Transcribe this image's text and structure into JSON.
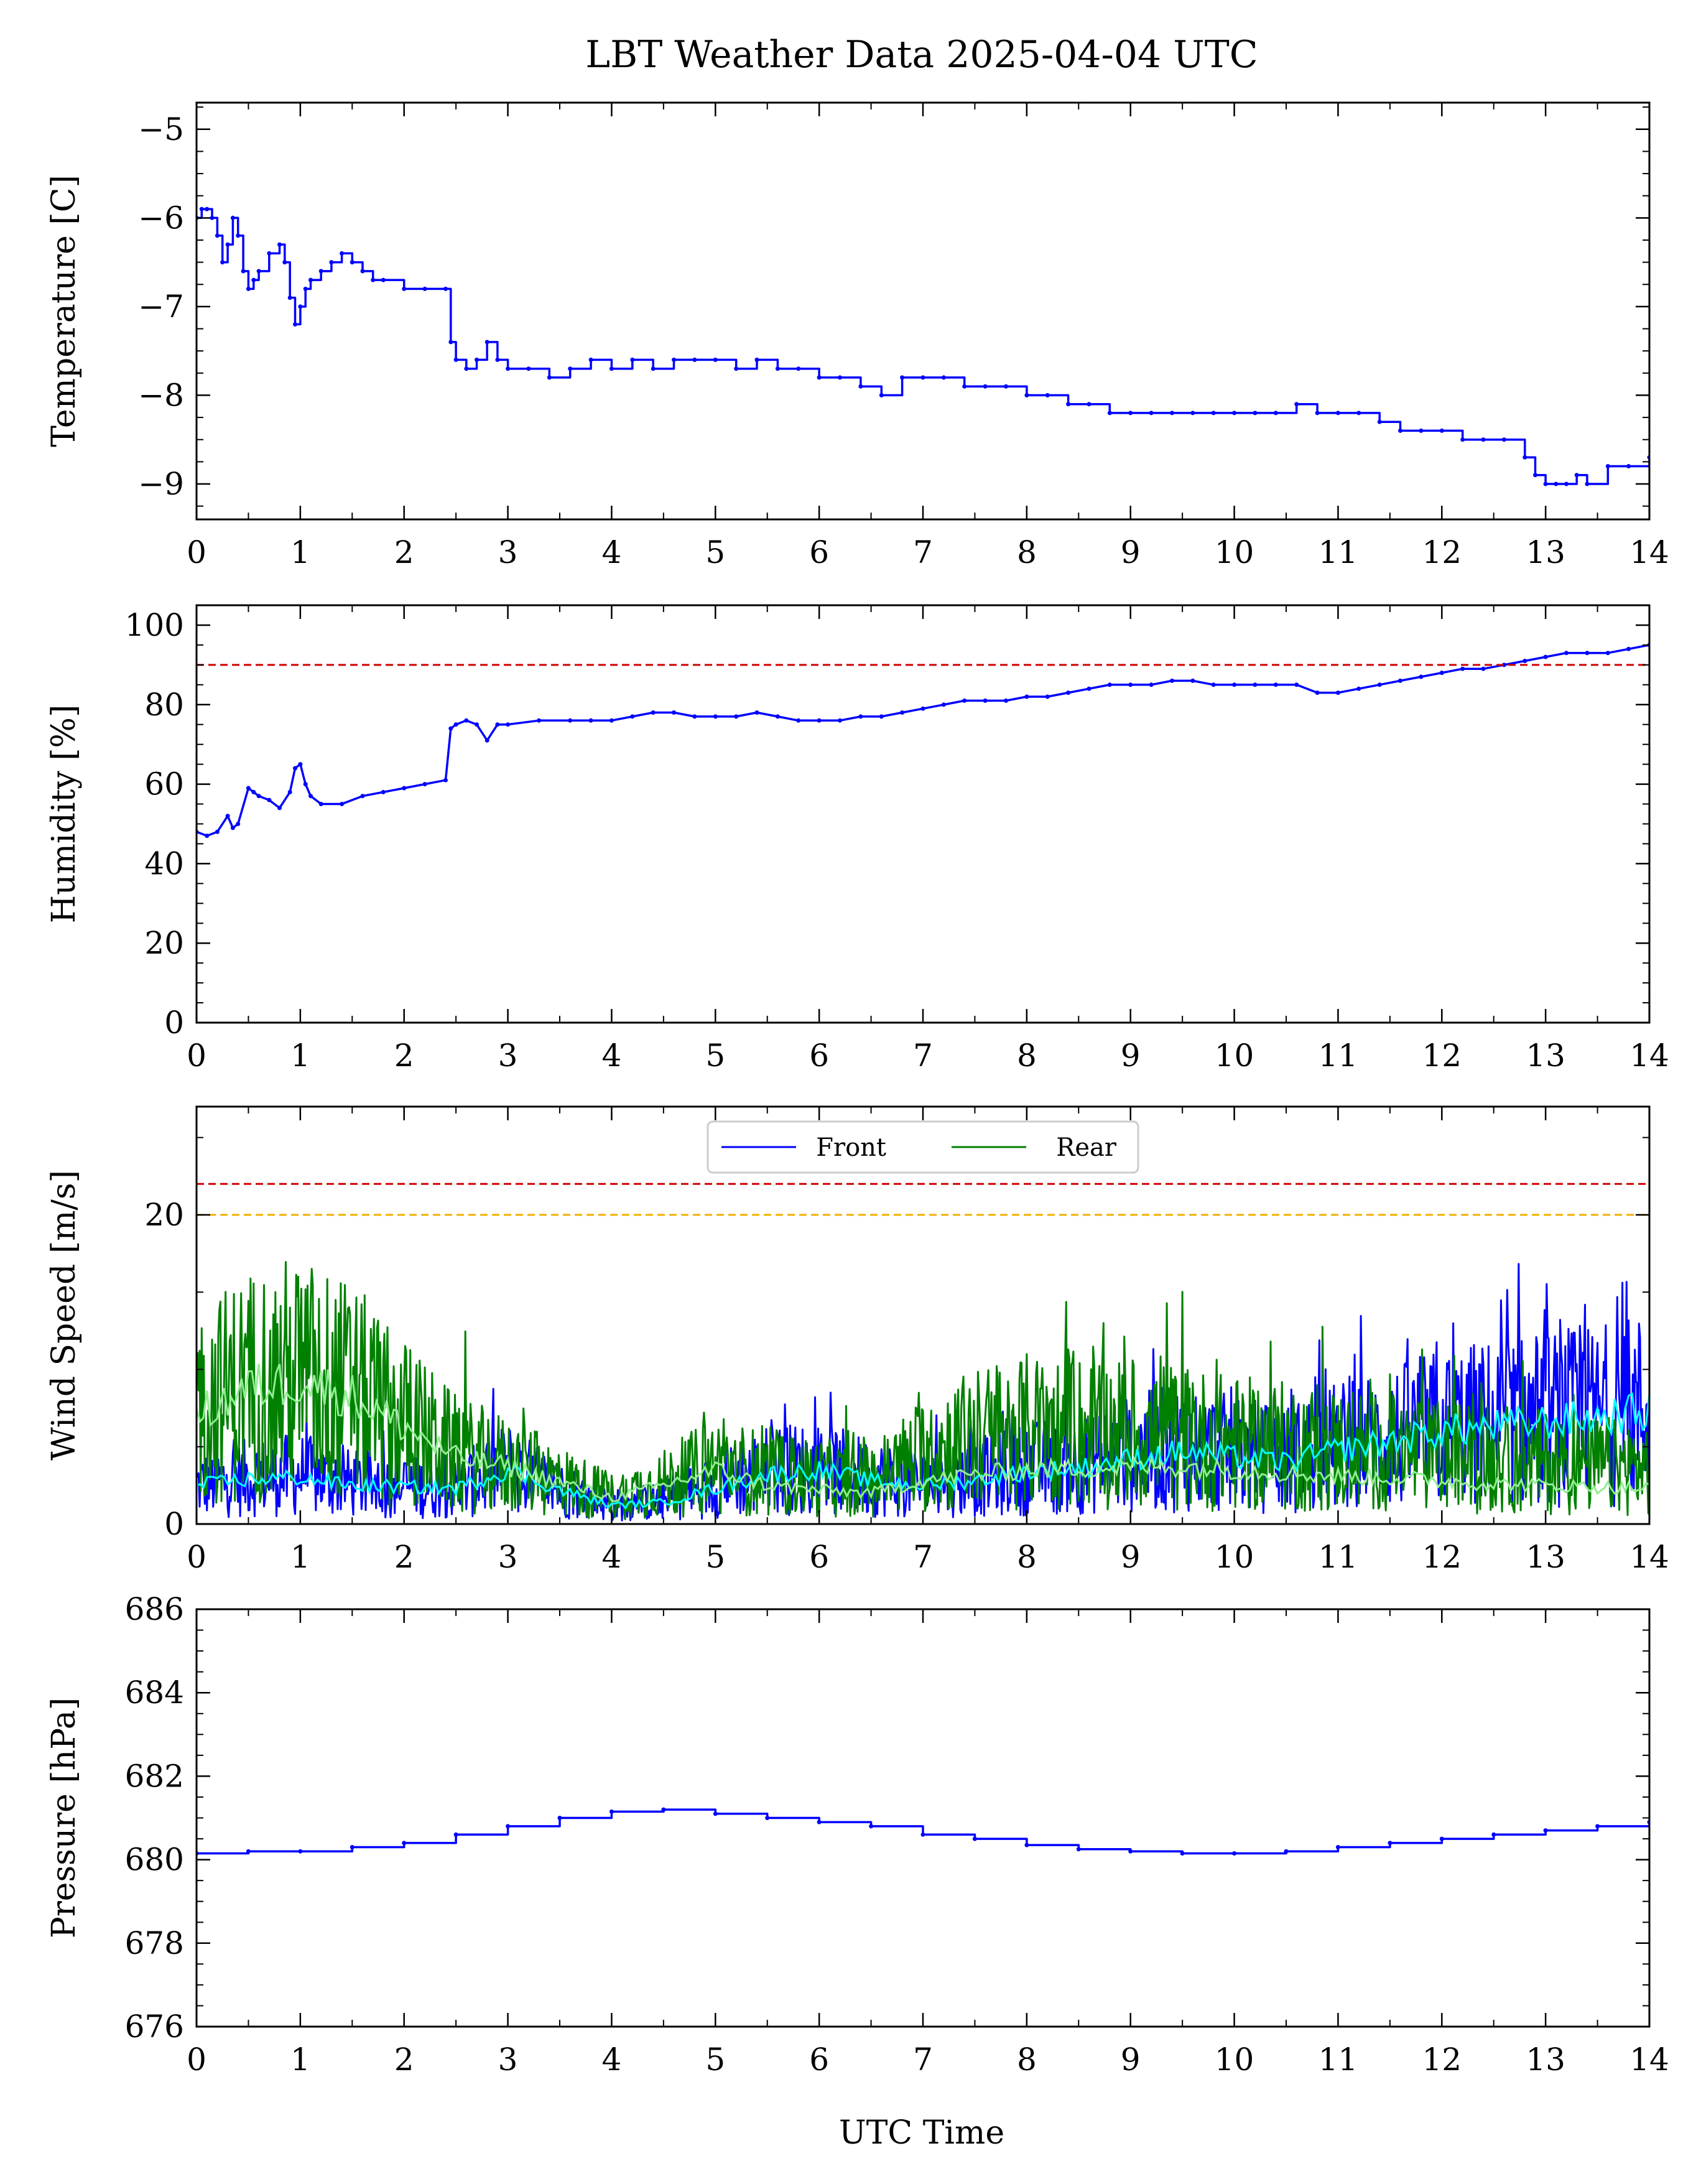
{
  "figure_title": "LBT Weather Data 2025-04-04 UTC",
  "x_axis_label": "UTC Time",
  "x_ticks": [
    0,
    1,
    2,
    3,
    4,
    5,
    6,
    7,
    8,
    9,
    10,
    11,
    12,
    13,
    14
  ],
  "colors": {
    "front": "#0000ff",
    "rear": "#008000",
    "front_smooth": "#00ffff",
    "rear_smooth": "#90ee90",
    "limit_red": "#d00000",
    "limit_orange": "#f0b000"
  },
  "chart_data": [
    {
      "type": "line",
      "ylabel": "Temperature [C]",
      "xlim": [
        0,
        14
      ],
      "ylim": [
        -9.4,
        -4.7
      ],
      "yticks": [
        -9,
        -8,
        -7,
        -6,
        -5
      ],
      "ytick_labels": [
        "−9",
        "−8",
        "−7",
        "−6",
        "−5"
      ],
      "series": [
        {
          "color": "#0000ff",
          "x": [
            0,
            0.05,
            0.1,
            0.15,
            0.2,
            0.25,
            0.3,
            0.35,
            0.4,
            0.45,
            0.5,
            0.55,
            0.6,
            0.7,
            0.8,
            0.85,
            0.9,
            0.95,
            1.0,
            1.05,
            1.1,
            1.2,
            1.3,
            1.4,
            1.5,
            1.6,
            1.7,
            1.8,
            2.0,
            2.2,
            2.4,
            2.45,
            2.5,
            2.6,
            2.7,
            2.8,
            2.9,
            3.0,
            3.2,
            3.4,
            3.6,
            3.8,
            4.0,
            4.2,
            4.4,
            4.6,
            4.8,
            5.0,
            5.2,
            5.4,
            5.6,
            5.8,
            6.0,
            6.2,
            6.4,
            6.6,
            6.8,
            7.0,
            7.2,
            7.4,
            7.6,
            7.8,
            8.0,
            8.2,
            8.4,
            8.6,
            8.8,
            9.0,
            9.2,
            9.4,
            9.6,
            9.8,
            10.0,
            10.2,
            10.4,
            10.6,
            10.8,
            11.0,
            11.2,
            11.4,
            11.6,
            11.8,
            12.0,
            12.2,
            12.4,
            12.6,
            12.8,
            12.9,
            13.0,
            13.1,
            13.2,
            13.3,
            13.4,
            13.6,
            13.8,
            14.0
          ],
          "y": [
            -6.0,
            -5.9,
            -5.9,
            -6.0,
            -6.2,
            -6.5,
            -6.3,
            -6.0,
            -6.2,
            -6.6,
            -6.8,
            -6.7,
            -6.6,
            -6.4,
            -6.3,
            -6.5,
            -6.9,
            -7.2,
            -7.0,
            -6.8,
            -6.7,
            -6.6,
            -6.5,
            -6.4,
            -6.5,
            -6.6,
            -6.7,
            -6.7,
            -6.8,
            -6.8,
            -6.8,
            -7.4,
            -7.6,
            -7.7,
            -7.6,
            -7.4,
            -7.6,
            -7.7,
            -7.7,
            -7.8,
            -7.7,
            -7.6,
            -7.7,
            -7.6,
            -7.7,
            -7.6,
            -7.6,
            -7.6,
            -7.7,
            -7.6,
            -7.7,
            -7.7,
            -7.8,
            -7.8,
            -7.9,
            -8.0,
            -7.8,
            -7.8,
            -7.8,
            -7.9,
            -7.9,
            -7.9,
            -8.0,
            -8.0,
            -8.1,
            -8.1,
            -8.2,
            -8.2,
            -8.2,
            -8.2,
            -8.2,
            -8.2,
            -8.2,
            -8.2,
            -8.2,
            -8.1,
            -8.2,
            -8.2,
            -8.2,
            -8.3,
            -8.4,
            -8.4,
            -8.4,
            -8.5,
            -8.5,
            -8.5,
            -8.7,
            -8.9,
            -9.0,
            -9.0,
            -9.0,
            -8.9,
            -9.0,
            -8.8,
            -8.8,
            -8.7
          ]
        }
      ],
      "hlines": []
    },
    {
      "type": "line",
      "ylabel": "Humidity [%]",
      "xlim": [
        0,
        14
      ],
      "ylim": [
        0,
        105
      ],
      "yticks": [
        0,
        20,
        40,
        60,
        80,
        100
      ],
      "ytick_labels": [
        "0",
        "20",
        "40",
        "60",
        "80",
        "100"
      ],
      "series": [
        {
          "color": "#0000ff",
          "x": [
            0,
            0.1,
            0.2,
            0.3,
            0.35,
            0.4,
            0.5,
            0.55,
            0.6,
            0.7,
            0.8,
            0.9,
            0.95,
            1.0,
            1.05,
            1.1,
            1.2,
            1.4,
            1.6,
            1.8,
            2.0,
            2.2,
            2.4,
            2.45,
            2.5,
            2.6,
            2.7,
            2.8,
            2.9,
            3.0,
            3.3,
            3.6,
            3.8,
            4.0,
            4.2,
            4.4,
            4.6,
            4.8,
            5.0,
            5.2,
            5.4,
            5.6,
            5.8,
            6.0,
            6.2,
            6.4,
            6.6,
            6.8,
            7.0,
            7.2,
            7.4,
            7.6,
            7.8,
            8.0,
            8.2,
            8.4,
            8.6,
            8.8,
            9.0,
            9.2,
            9.4,
            9.6,
            9.8,
            10.0,
            10.2,
            10.4,
            10.6,
            10.8,
            11.0,
            11.2,
            11.4,
            11.6,
            11.8,
            12.0,
            12.2,
            12.4,
            12.6,
            12.8,
            13.0,
            13.2,
            13.4,
            13.6,
            13.8,
            14.0
          ],
          "y": [
            48,
            47,
            48,
            52,
            49,
            50,
            59,
            58,
            57,
            56,
            54,
            58,
            64,
            65,
            60,
            57,
            55,
            55,
            57,
            58,
            59,
            60,
            61,
            74,
            75,
            76,
            75,
            71,
            75,
            75,
            76,
            76,
            76,
            76,
            77,
            78,
            78,
            77,
            77,
            77,
            78,
            77,
            76,
            76,
            76,
            77,
            77,
            78,
            79,
            80,
            81,
            81,
            81,
            82,
            82,
            83,
            84,
            85,
            85,
            85,
            86,
            86,
            85,
            85,
            85,
            85,
            85,
            83,
            83,
            84,
            85,
            86,
            87,
            88,
            89,
            89,
            90,
            91,
            92,
            93,
            93,
            93,
            94,
            95
          ]
        }
      ],
      "hlines": [
        {
          "y": 90,
          "color": "#d00000"
        }
      ]
    },
    {
      "type": "line",
      "ylabel": "Wind Speed [m/s]",
      "xlim": [
        0,
        14
      ],
      "ylim": [
        0,
        27
      ],
      "yticks": [
        0,
        20
      ],
      "ytick_labels": [
        "0",
        "20"
      ],
      "legend": {
        "placement": "top-center",
        "entries": [
          "Front",
          "Rear"
        ]
      },
      "series": [
        {
          "name": "Front",
          "color": "#0000ff",
          "role": "raw",
          "x": [
            0,
            0.5,
            1,
            1.5,
            2,
            2.5,
            3,
            3.5,
            4,
            4.5,
            5,
            5.5,
            6,
            6.5,
            7,
            7.5,
            8,
            8.5,
            9,
            9.5,
            10,
            10.5,
            11,
            11.5,
            12,
            12.5,
            13,
            13.5,
            14
          ],
          "y": [
            2.5,
            3.0,
            3.2,
            2.6,
            2.4,
            2.3,
            3.6,
            2.2,
            1.2,
            1.5,
            2.5,
            3.5,
            3.6,
            3.0,
            2.6,
            3.0,
            3.6,
            3.8,
            4.5,
            5.0,
            4.5,
            4.2,
            5.0,
            5.5,
            6.2,
            6.5,
            6.8,
            7.0,
            7.5
          ]
        },
        {
          "name": "Rear",
          "color": "#008000",
          "role": "raw",
          "x": [
            0,
            0.5,
            1,
            1.5,
            2,
            2.5,
            3,
            3.5,
            4,
            4.5,
            5,
            5.5,
            6,
            6.5,
            7,
            7.5,
            8,
            8.5,
            9,
            9.5,
            10,
            10.5,
            11,
            11.5,
            12,
            12.5,
            13,
            13.5,
            14
          ],
          "y": [
            7.5,
            9.0,
            9.5,
            8.5,
            6.5,
            4.5,
            3.8,
            2.8,
            1.8,
            2.6,
            3.8,
            3.2,
            3.0,
            2.8,
            4.5,
            5.5,
            6.0,
            6.0,
            5.8,
            5.6,
            5.2,
            5.0,
            4.8,
            4.6,
            4.4,
            4.2,
            4.0,
            3.8,
            3.6
          ]
        },
        {
          "color": "#00ffff",
          "role": "smooth",
          "x": [
            0,
            0.5,
            1,
            1.5,
            2,
            2.5,
            3,
            3.5,
            4,
            4.5,
            5,
            5.5,
            6,
            6.5,
            7,
            7.5,
            8,
            8.5,
            9,
            9.5,
            10,
            10.5,
            11,
            11.5,
            12,
            12.5,
            13,
            13.5,
            14
          ],
          "y": [
            2.5,
            2.9,
            3.0,
            2.5,
            2.4,
            2.3,
            3.5,
            2.2,
            1.2,
            1.4,
            2.3,
            3.2,
            3.5,
            2.8,
            2.5,
            2.8,
            3.4,
            3.6,
            4.2,
            4.7,
            4.3,
            4.0,
            4.8,
            5.3,
            6.0,
            6.3,
            6.6,
            6.9,
            7.3
          ]
        },
        {
          "color": "#90ee90",
          "role": "smooth",
          "x": [
            0,
            0.5,
            1,
            1.5,
            2,
            2.5,
            3,
            3.5,
            4,
            4.5,
            5,
            5.5,
            6,
            6.5,
            7,
            7.5,
            8,
            8.5,
            9,
            9.5,
            10,
            10.5,
            11,
            11.5,
            12,
            12.5,
            13,
            13.5,
            14
          ],
          "y": [
            7.0,
            8.8,
            9.3,
            8.3,
            6.3,
            4.3,
            3.7,
            2.7,
            1.7,
            2.5,
            3.5,
            2.5,
            2.2,
            2.0,
            2.8,
            3.2,
            3.5,
            3.6,
            3.7,
            3.7,
            3.5,
            3.3,
            3.1,
            3.0,
            2.8,
            2.6,
            2.5,
            2.4,
            2.3
          ]
        }
      ],
      "hlines": [
        {
          "y": 22,
          "color": "#d00000"
        },
        {
          "y": 20,
          "color": "#f0b000"
        }
      ]
    },
    {
      "type": "line",
      "ylabel": "Pressure [hPa]",
      "xlim": [
        0,
        14
      ],
      "ylim": [
        676,
        686
      ],
      "yticks": [
        676,
        678,
        680,
        682,
        684,
        686
      ],
      "ytick_labels": [
        "676",
        "678",
        "680",
        "682",
        "684",
        "686"
      ],
      "series": [
        {
          "color": "#0000ff",
          "x": [
            0,
            0.5,
            1,
            1.5,
            2,
            2.5,
            3,
            3.5,
            4,
            4.5,
            5,
            5.5,
            6,
            6.5,
            7,
            7.5,
            8,
            8.5,
            9,
            9.5,
            10,
            10.5,
            11,
            11.5,
            12,
            12.5,
            13,
            13.5,
            14
          ],
          "y": [
            680.15,
            680.2,
            680.2,
            680.3,
            680.4,
            680.6,
            680.8,
            681.0,
            681.15,
            681.2,
            681.1,
            681.0,
            680.9,
            680.8,
            680.6,
            680.5,
            680.35,
            680.25,
            680.2,
            680.15,
            680.15,
            680.2,
            680.3,
            680.4,
            680.5,
            680.6,
            680.7,
            680.8,
            680.9
          ]
        }
      ],
      "hlines": []
    }
  ]
}
